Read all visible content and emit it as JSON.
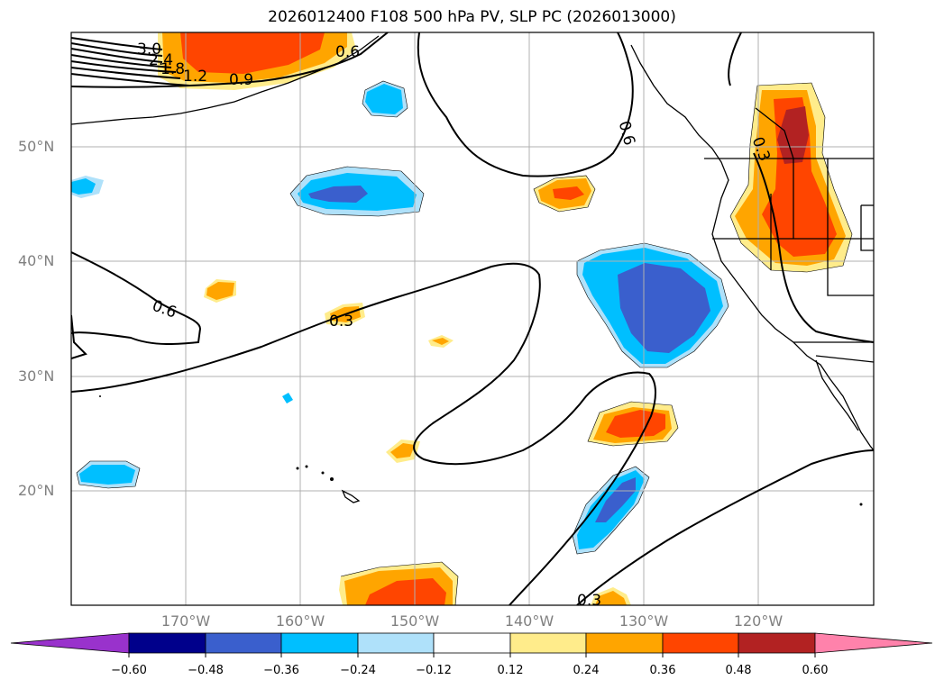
{
  "title": "2026012400 F108 500 hPa PV, SLP PC (2026013000)",
  "map": {
    "lat_labels": [
      "50°N",
      "40°N",
      "30°N",
      "20°N"
    ],
    "lon_labels": [
      "170°W",
      "160°W",
      "150°W",
      "140°W",
      "130°W",
      "120°W"
    ],
    "lat_values": [
      50,
      40,
      30,
      20
    ],
    "lon_values": [
      -170,
      -160,
      -150,
      -140,
      -130,
      -120
    ],
    "extent": {
      "lon_min": -180,
      "lon_max": -110,
      "lat_min": 10,
      "lat_max": 60
    },
    "contour_labels": [
      "3.0",
      "2.4",
      "1.8",
      "1.2",
      "0.9",
      "0.6",
      "0.6",
      "0.6",
      "0.3",
      "0.3",
      "0.3"
    ],
    "coastline_color": "#000000",
    "gridlines": true
  },
  "colorbar": {
    "tick_labels": [
      "−0.60",
      "−0.48",
      "−0.36",
      "−0.24",
      "−0.12",
      "0.12",
      "0.24",
      "0.36",
      "0.48",
      "0.60"
    ],
    "levels": [
      -0.6,
      -0.48,
      -0.36,
      -0.24,
      -0.12,
      0.12,
      0.24,
      0.36,
      0.48,
      0.6
    ],
    "colors": [
      "#9932cc",
      "#00008b",
      "#3a5fcd",
      "#00bfff",
      "#afe1fa",
      "#ffffff",
      "#ffec8b",
      "#ffa500",
      "#ff4500",
      "#b22222",
      "#ff82ab"
    ],
    "extend": "both"
  }
}
